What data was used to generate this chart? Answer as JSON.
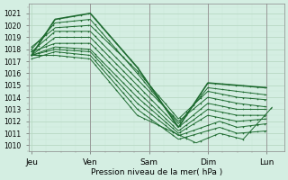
{
  "xlabel": "Pression niveau de la mer( hPa )",
  "ylim": [
    1009.5,
    1021.8
  ],
  "yticks": [
    1010,
    1011,
    1012,
    1013,
    1014,
    1015,
    1016,
    1017,
    1018,
    1019,
    1020,
    1021
  ],
  "xtick_labels": [
    "Jeu",
    "Ven",
    "Sam",
    "Dim",
    "Lun"
  ],
  "xtick_pos": [
    0,
    1,
    2,
    3,
    4
  ],
  "bg_color": "#d4eee2",
  "grid_major_color": "#b8d8c4",
  "grid_minor_color": "#c8e8d4",
  "line_color": "#1e6b30",
  "figsize": [
    3.2,
    2.0
  ],
  "dpi": 100,
  "ensemble_lines": [
    {
      "nodes_x": [
        0,
        0.4,
        1.0,
        1.8,
        2.5,
        3.0,
        3.5,
        4.0
      ],
      "nodes_y": [
        1017.5,
        1020.5,
        1021.0,
        1016.5,
        1011.5,
        1015.2,
        1015.0,
        1014.8
      ]
    },
    {
      "nodes_x": [
        0,
        0.4,
        1.0,
        1.8,
        2.5,
        3.0,
        3.5,
        4.0
      ],
      "nodes_y": [
        1018.0,
        1020.2,
        1020.5,
        1016.0,
        1011.8,
        1014.8,
        1014.5,
        1014.2
      ]
    },
    {
      "nodes_x": [
        0,
        0.4,
        1.0,
        1.8,
        2.5,
        3.0,
        3.5,
        4.0
      ],
      "nodes_y": [
        1018.2,
        1019.8,
        1020.0,
        1016.2,
        1012.2,
        1014.5,
        1014.0,
        1013.8
      ]
    },
    {
      "nodes_x": [
        0,
        0.4,
        1.0,
        1.8,
        2.5,
        3.0,
        3.5,
        4.0
      ],
      "nodes_y": [
        1017.8,
        1019.5,
        1019.5,
        1015.5,
        1012.0,
        1014.0,
        1013.5,
        1013.2
      ]
    },
    {
      "nodes_x": [
        0,
        0.4,
        1.0,
        1.8,
        2.5,
        3.0,
        3.5,
        4.0
      ],
      "nodes_y": [
        1017.5,
        1019.0,
        1019.0,
        1015.0,
        1011.5,
        1013.5,
        1013.0,
        1013.0
      ]
    },
    {
      "nodes_x": [
        0,
        0.4,
        1.0,
        1.8,
        2.5,
        3.0,
        3.5,
        4.0
      ],
      "nodes_y": [
        1017.8,
        1018.5,
        1018.5,
        1014.5,
        1011.2,
        1013.0,
        1012.5,
        1012.5
      ]
    },
    {
      "nodes_x": [
        0,
        0.4,
        1.0,
        1.8,
        2.5,
        3.0,
        3.5,
        4.0
      ],
      "nodes_y": [
        1017.5,
        1018.2,
        1018.0,
        1014.0,
        1011.0,
        1012.5,
        1012.0,
        1012.2
      ]
    },
    {
      "nodes_x": [
        0,
        0.4,
        1.0,
        1.8,
        2.5,
        3.2,
        3.5,
        4.0
      ],
      "nodes_y": [
        1017.5,
        1018.0,
        1017.8,
        1013.5,
        1010.8,
        1012.0,
        1011.5,
        1011.8
      ]
    },
    {
      "nodes_x": [
        0,
        0.4,
        1.0,
        1.8,
        2.5,
        3.2,
        3.5,
        4.0
      ],
      "nodes_y": [
        1017.2,
        1017.8,
        1017.5,
        1013.0,
        1010.5,
        1011.5,
        1011.0,
        1011.2
      ]
    },
    {
      "nodes_x": [
        0,
        0.4,
        1.0,
        1.8,
        2.8,
        3.2,
        3.6,
        4.1
      ],
      "nodes_y": [
        1017.5,
        1017.5,
        1017.2,
        1012.5,
        1010.2,
        1011.0,
        1010.5,
        1013.2
      ]
    }
  ]
}
